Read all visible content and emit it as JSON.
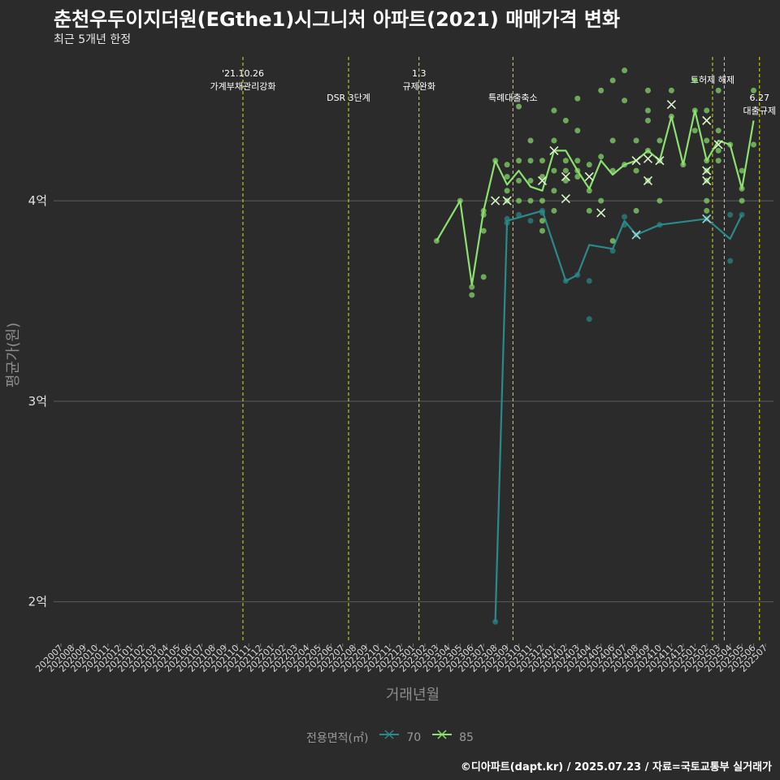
{
  "title": "춘천우두이지더원(EGthe1)시그니처 아파트(2021) 매매가격 변화",
  "subtitle": "최근 5개년 한정",
  "caption": "©디아파트(dapt.kr) / 2025.07.23 / 자료=국토교통부 실거래가",
  "colors": {
    "bg": "#2b2b2b",
    "grid": "#5c5c5c",
    "vline": "#d9e021",
    "s70": "#2a8a8a",
    "s85": "#8be06e"
  },
  "chart_data": {
    "type": "line",
    "title": "춘천우두이지더원(EGthe1)시그니처 아파트(2021) 매매가격 변화",
    "xlabel": "거래년월",
    "ylabel": "평균가(원)",
    "ylim": [
      1.8,
      4.75
    ],
    "yticks": [
      {
        "value": 2,
        "label": "2억"
      },
      {
        "value": 3,
        "label": "3억"
      },
      {
        "value": 4,
        "label": "4억"
      }
    ],
    "categories": [
      "202007",
      "202008",
      "202009",
      "202010",
      "202011",
      "202012",
      "202101",
      "202102",
      "202103",
      "202104",
      "202105",
      "202106",
      "202107",
      "202108",
      "202109",
      "202110",
      "202111",
      "202112",
      "202201",
      "202202",
      "202203",
      "202204",
      "202205",
      "202206",
      "202207",
      "202208",
      "202209",
      "202210",
      "202211",
      "202212",
      "202301",
      "202302",
      "202303",
      "202304",
      "202305",
      "202306",
      "202307",
      "202308",
      "202309",
      "202310",
      "202311",
      "202312",
      "202401",
      "202402",
      "202403",
      "202404",
      "202405",
      "202406",
      "202407",
      "202408",
      "202409",
      "202410",
      "202411",
      "202412",
      "202501",
      "202502",
      "202503",
      "202504",
      "202505",
      "202506",
      "202507"
    ],
    "legend_title": "전용면적(㎡)",
    "series": [
      {
        "name": "70",
        "points": [
          [
            37,
            1.9
          ],
          [
            38,
            3.9
          ],
          [
            41,
            3.95
          ],
          [
            43,
            3.6
          ],
          [
            44,
            3.63
          ],
          [
            45,
            3.78
          ],
          [
            47,
            3.76
          ],
          [
            48,
            3.9
          ],
          [
            49,
            3.83
          ],
          [
            51,
            3.88
          ],
          [
            55,
            3.91
          ],
          [
            57,
            3.81
          ],
          [
            58,
            3.93
          ]
        ],
        "scatter": [
          [
            37,
            1.9
          ],
          [
            38,
            3.89
          ],
          [
            38,
            3.91
          ],
          [
            39,
            3.93
          ],
          [
            40,
            3.9
          ],
          [
            41,
            3.94
          ],
          [
            41,
            3.95
          ],
          [
            43,
            3.6
          ],
          [
            44,
            3.63
          ],
          [
            45,
            3.6
          ],
          [
            45,
            3.41
          ],
          [
            47,
            3.75
          ],
          [
            48,
            3.88
          ],
          [
            48,
            3.92
          ],
          [
            49,
            3.83
          ],
          [
            51,
            3.88
          ],
          [
            55,
            3.91
          ],
          [
            57,
            3.7
          ],
          [
            57,
            3.93
          ],
          [
            58,
            3.93
          ]
        ],
        "markers": [
          [
            49,
            3.83
          ],
          [
            55,
            3.91
          ]
        ]
      },
      {
        "name": "85",
        "points": [
          [
            32,
            3.8
          ],
          [
            34,
            4.0
          ],
          [
            35,
            3.58
          ],
          [
            36,
            3.95
          ],
          [
            37,
            4.2
          ],
          [
            38,
            4.08
          ],
          [
            39,
            4.15
          ],
          [
            40,
            4.07
          ],
          [
            41,
            4.05
          ],
          [
            42,
            4.25
          ],
          [
            43,
            4.25
          ],
          [
            44,
            4.15
          ],
          [
            45,
            4.06
          ],
          [
            46,
            4.2
          ],
          [
            47,
            4.13
          ],
          [
            48,
            4.18
          ],
          [
            49,
            4.2
          ],
          [
            50,
            4.25
          ],
          [
            51,
            4.2
          ],
          [
            52,
            4.42
          ],
          [
            53,
            4.18
          ],
          [
            54,
            4.45
          ],
          [
            55,
            4.2
          ],
          [
            56,
            4.3
          ],
          [
            57,
            4.28
          ],
          [
            58,
            4.06
          ],
          [
            59,
            4.4
          ]
        ],
        "scatter": [
          [
            32,
            3.8
          ],
          [
            34,
            4.0
          ],
          [
            35,
            3.53
          ],
          [
            35,
            3.57
          ],
          [
            36,
            3.62
          ],
          [
            36,
            3.85
          ],
          [
            36,
            3.93
          ],
          [
            36,
            3.95
          ],
          [
            37,
            4.2
          ],
          [
            38,
            4.0
          ],
          [
            38,
            4.05
          ],
          [
            38,
            4.12
          ],
          [
            38,
            4.18
          ],
          [
            39,
            4.0
          ],
          [
            39,
            4.1
          ],
          [
            39,
            4.2
          ],
          [
            39,
            4.47
          ],
          [
            40,
            4.0
          ],
          [
            40,
            4.1
          ],
          [
            40,
            4.2
          ],
          [
            40,
            4.3
          ],
          [
            41,
            3.85
          ],
          [
            41,
            3.9
          ],
          [
            41,
            4.0
          ],
          [
            41,
            4.12
          ],
          [
            41,
            4.2
          ],
          [
            42,
            3.95
          ],
          [
            42,
            4.05
          ],
          [
            42,
            4.15
          ],
          [
            42,
            4.3
          ],
          [
            42,
            4.45
          ],
          [
            43,
            4.1
          ],
          [
            43,
            4.15
          ],
          [
            43,
            4.2
          ],
          [
            43,
            4.4
          ],
          [
            44,
            4.12
          ],
          [
            44,
            4.15
          ],
          [
            44,
            4.2
          ],
          [
            44,
            4.35
          ],
          [
            44,
            4.51
          ],
          [
            45,
            3.95
          ],
          [
            45,
            4.05
          ],
          [
            45,
            4.18
          ],
          [
            46,
            4.22
          ],
          [
            46,
            4.55
          ],
          [
            46,
            4.0
          ],
          [
            47,
            4.15
          ],
          [
            47,
            4.3
          ],
          [
            47,
            4.6
          ],
          [
            47,
            3.8
          ],
          [
            48,
            4.18
          ],
          [
            48,
            4.5
          ],
          [
            48,
            4.65
          ],
          [
            49,
            4.15
          ],
          [
            49,
            4.3
          ],
          [
            49,
            3.95
          ],
          [
            50,
            4.1
          ],
          [
            50,
            4.25
          ],
          [
            50,
            4.4
          ],
          [
            50,
            4.45
          ],
          [
            50,
            4.55
          ],
          [
            51,
            4.0
          ],
          [
            51,
            4.2
          ],
          [
            51,
            4.3
          ],
          [
            52,
            4.42
          ],
          [
            52,
            4.55
          ],
          [
            53,
            4.18
          ],
          [
            54,
            4.45
          ],
          [
            54,
            4.6
          ],
          [
            54,
            4.35
          ],
          [
            55,
            3.95
          ],
          [
            55,
            4.0
          ],
          [
            55,
            4.1
          ],
          [
            55,
            4.15
          ],
          [
            55,
            4.2
          ],
          [
            55,
            4.3
          ],
          [
            55,
            4.45
          ],
          [
            56,
            4.2
          ],
          [
            56,
            4.25
          ],
          [
            56,
            4.35
          ],
          [
            56,
            4.55
          ],
          [
            57,
            4.28
          ],
          [
            58,
            4.0
          ],
          [
            58,
            4.06
          ],
          [
            58,
            4.15
          ],
          [
            59,
            4.28
          ],
          [
            59,
            4.55
          ]
        ],
        "markers": [
          [
            37,
            4.0
          ],
          [
            38,
            4.0
          ],
          [
            41,
            4.1
          ],
          [
            42,
            4.25
          ],
          [
            43,
            4.12
          ],
          [
            43,
            4.01
          ],
          [
            45,
            4.12
          ],
          [
            46,
            3.94
          ],
          [
            49,
            4.2
          ],
          [
            50,
            4.1
          ],
          [
            50,
            4.21
          ],
          [
            51,
            4.2
          ],
          [
            52,
            4.48
          ],
          [
            55,
            4.1
          ],
          [
            55,
            4.15
          ],
          [
            55,
            4.4
          ],
          [
            56,
            4.28
          ]
        ]
      }
    ],
    "events": [
      {
        "index": 15.5,
        "lines": [
          "'21.10.26",
          "가계부채관리강화"
        ],
        "row": 0
      },
      {
        "index": 24.5,
        "lines": [
          "DSR 3단계"
        ],
        "row": 2
      },
      {
        "index": 30.5,
        "lines": [
          "1.3",
          "규제완화"
        ],
        "row": 0
      },
      {
        "index": 38.5,
        "lines": [
          "특례대출축소"
        ],
        "row": 2
      },
      {
        "index": 55.5,
        "lines": [
          "토허제 해제"
        ],
        "row": 1
      },
      {
        "index": 56.5,
        "lines": [
          ""
        ],
        "row": 1
      },
      {
        "index": 59.5,
        "lines": [
          "6.27",
          "대출규제"
        ],
        "row": 2
      }
    ]
  }
}
